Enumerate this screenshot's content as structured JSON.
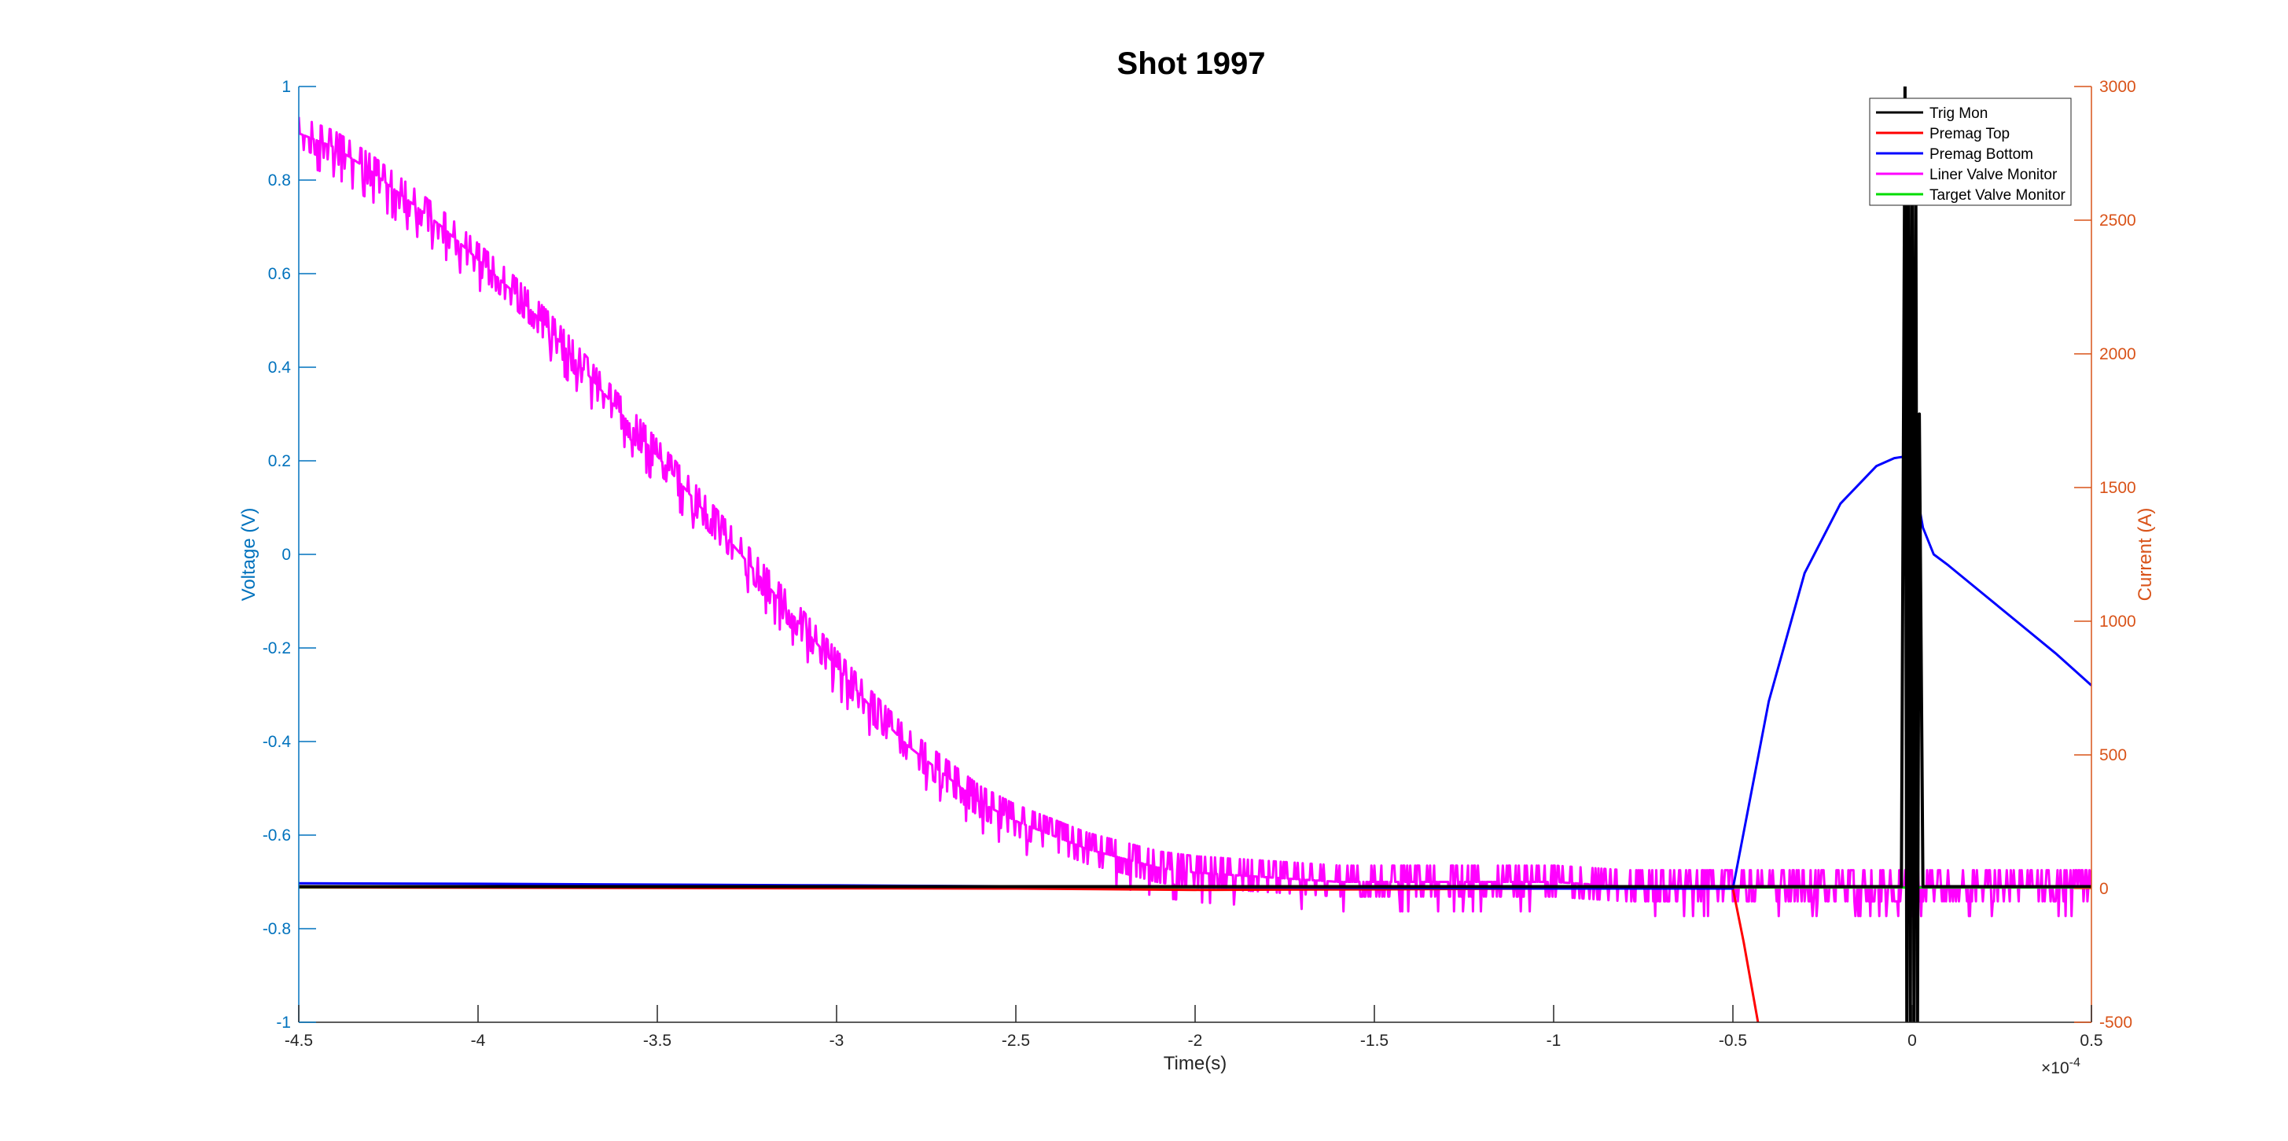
{
  "chart_data": {
    "type": "line",
    "title": "Shot 1997",
    "xlabel": "Time(s)",
    "ylabel_left": "Voltage (V)",
    "ylabel_right": "Current (A)",
    "x_multiplier_label": "×10",
    "x_multiplier_exp": "-4",
    "xlim": [
      -4.5,
      0.5
    ],
    "ylim_left": [
      -1,
      1
    ],
    "ylim_right": [
      -500,
      3000
    ],
    "x_ticks": [
      "-4.5",
      "-4",
      "-3.5",
      "-3",
      "-2.5",
      "-2",
      "-1.5",
      "-1",
      "-0.5",
      "0",
      "0.5"
    ],
    "y_left_ticks": [
      "1",
      "0.8",
      "0.6",
      "0.4",
      "0.2",
      "0",
      "-0.2",
      "-0.4",
      "-0.6",
      "-0.8",
      "-1"
    ],
    "y_right_ticks": [
      "3000",
      "2500",
      "2000",
      "1500",
      "1000",
      "500",
      "0",
      "-500"
    ],
    "grid": false,
    "legend_placement": "top-right",
    "colors": {
      "left_axis": "#0072BD",
      "right_axis": "#D95319"
    },
    "series": [
      {
        "name": "Trig Mon",
        "color": "#000000",
        "axis": "left",
        "x": [
          -4.5,
          -3.0,
          -1.5,
          -0.6,
          -0.05,
          -0.03,
          -0.02,
          -0.015,
          -0.01,
          -0.005,
          0,
          0.005,
          0.01,
          0.015,
          0.02,
          0.03,
          0.05,
          0.5
        ],
        "y": [
          -0.71,
          -0.71,
          -0.71,
          -0.71,
          -0.71,
          -0.71,
          1.0,
          -1.0,
          0.95,
          -1.0,
          0.9,
          -1.0,
          0.85,
          -1.0,
          0.3,
          -0.71,
          -0.71,
          -0.71
        ]
      },
      {
        "name": "Premag Top",
        "color": "#FF0000",
        "axis": "right",
        "x": [
          -4.5,
          -3.5,
          -2.5,
          -2.0,
          -1.5,
          -1.0,
          -0.5,
          -0.47,
          -0.45,
          -0.43
        ],
        "y": [
          5,
          2,
          0,
          -5,
          -3,
          0,
          0,
          -200,
          -350,
          -500
        ]
      },
      {
        "name": "Premag Bottom",
        "color": "#0000FF",
        "axis": "right",
        "x": [
          -4.5,
          -4.0,
          -3.0,
          -2.0,
          -1.0,
          -0.5,
          -0.4,
          -0.3,
          -0.2,
          -0.1,
          -0.05,
          0,
          0.01,
          0.03,
          0.06,
          0.1,
          0.2,
          0.3,
          0.4,
          0.5
        ],
        "y": [
          20,
          18,
          12,
          5,
          0,
          0,
          700,
          1180,
          1440,
          1580,
          1610,
          1620,
          1500,
          1350,
          1250,
          1210,
          1100,
          990,
          880,
          760
        ]
      },
      {
        "name": "Liner Valve Monitor",
        "color": "#FF00FF",
        "axis": "left",
        "x": [
          -4.5,
          -4.4,
          -4.3,
          -4.2,
          -4.1,
          -4.0,
          -3.9,
          -3.8,
          -3.7,
          -3.6,
          -3.5,
          -3.4,
          -3.3,
          -3.2,
          -3.1,
          -3.0,
          -2.9,
          -2.8,
          -2.7,
          -2.6,
          -2.5,
          -2.4,
          -2.3,
          -2.2,
          -2.1,
          -2.0,
          -1.8,
          -1.6,
          -1.4,
          -1.2,
          -1.0,
          -0.8,
          -0.6,
          -0.4,
          -0.2,
          0,
          0.2,
          0.4,
          0.5
        ],
        "y": [
          0.9,
          0.87,
          0.82,
          0.76,
          0.7,
          0.63,
          0.56,
          0.48,
          0.39,
          0.3,
          0.21,
          0.12,
          0.03,
          -0.06,
          -0.15,
          -0.24,
          -0.33,
          -0.41,
          -0.47,
          -0.53,
          -0.57,
          -0.6,
          -0.63,
          -0.65,
          -0.67,
          -0.68,
          -0.69,
          -0.7,
          -0.7,
          -0.7,
          -0.7,
          -0.71,
          -0.71,
          -0.71,
          -0.71,
          -0.71,
          -0.71,
          -0.71,
          -0.71
        ],
        "noise_amplitude": 0.035
      },
      {
        "name": "Target Valve Monitor",
        "color": "#00DD00",
        "axis": "left",
        "x": [
          -4.5,
          -3.0,
          -1.5,
          0,
          0.5
        ],
        "y": [
          -0.712,
          -0.712,
          -0.712,
          -0.712,
          -0.712
        ]
      }
    ]
  }
}
